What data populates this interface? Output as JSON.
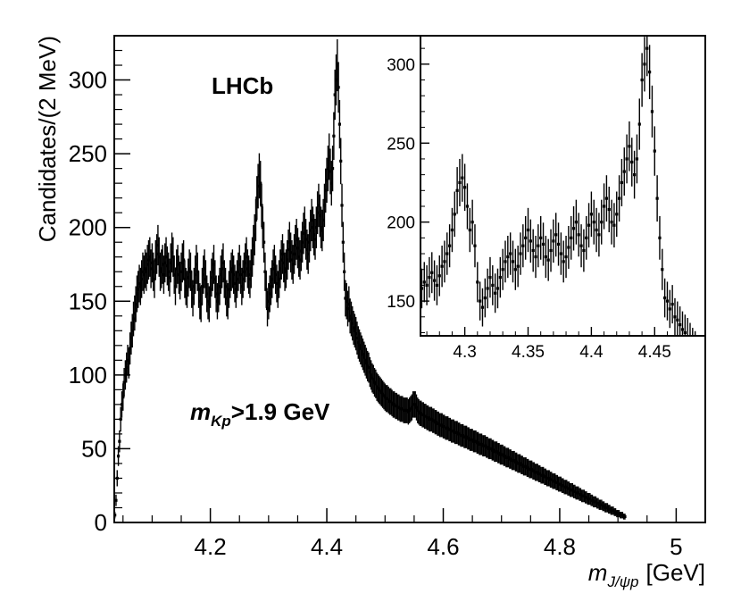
{
  "chart_data": [
    {
      "type": "scatter",
      "title": "",
      "annotations": {
        "experiment": "LHCb",
        "cut_var": "m",
        "cut_sub": "Kp",
        "cut_rest": ">1.9 GeV"
      },
      "xlabel_var": "m",
      "xlabel_sub": "J/ψp",
      "xlabel_unit": "[GeV]",
      "ylabel": "Candidates/(2 MeV)",
      "xlim": [
        4.035,
        5.05
      ],
      "ylim": [
        0,
        330
      ],
      "xticks": [
        4.2,
        4.4,
        4.6,
        4.8,
        5.0
      ],
      "xtick_labels": [
        "4.2",
        "4.4",
        "4.6",
        "4.8",
        "5"
      ],
      "yticks": [
        0,
        50,
        100,
        150,
        200,
        250,
        300
      ],
      "ytick_labels": [
        "0",
        "50",
        "100",
        "150",
        "200",
        "250",
        "300"
      ],
      "bin_width": 0.002,
      "x_first_center": 4.036,
      "values": [
        5,
        15,
        30,
        45,
        55,
        70,
        80,
        85,
        95,
        100,
        105,
        110,
        108,
        118,
        125,
        130,
        138,
        142,
        148,
        155,
        158,
        162,
        160,
        165,
        170,
        168,
        172,
        170,
        175,
        178,
        180,
        172,
        176,
        170,
        165,
        178,
        182,
        188,
        180,
        170,
        172,
        175,
        168,
        176,
        180,
        174,
        170,
        166,
        176,
        183,
        180,
        168,
        160,
        172,
        175,
        168,
        164,
        170,
        176,
        178,
        165,
        160,
        158,
        166,
        172,
        170,
        158,
        152,
        160,
        168,
        175,
        170,
        158,
        150,
        148,
        160,
        168,
        172,
        165,
        155,
        150,
        148,
        158,
        166,
        170,
        175,
        165,
        155,
        150,
        155,
        160,
        168,
        172,
        176,
        165,
        160,
        152,
        150,
        158,
        165,
        170,
        172,
        168,
        162,
        158,
        165,
        170,
        175,
        168,
        160,
        165,
        170,
        176,
        180,
        172,
        168,
        165,
        172,
        180,
        188,
        195,
        205,
        220,
        228,
        235,
        230,
        215,
        200,
        190,
        170,
        158,
        145,
        150,
        155,
        160,
        165,
        172,
        175,
        168,
        162,
        158,
        165,
        172,
        178,
        182,
        176,
        170,
        172,
        178,
        185,
        190,
        183,
        178,
        175,
        182,
        188,
        192,
        186,
        180,
        178,
        184,
        190,
        196,
        200,
        192,
        185,
        182,
        190,
        198,
        205,
        200,
        195,
        192,
        200,
        210,
        215,
        208,
        200,
        198,
        205,
        215,
        225,
        232,
        240,
        248,
        238,
        230,
        240,
        262,
        290,
        300,
        310,
        295,
        270,
        245,
        215,
        190,
        170,
        152,
        150,
        145,
        148,
        140,
        138,
        135,
        132,
        130,
        128,
        125,
        122,
        120,
        118,
        116,
        114,
        112,
        110,
        108,
        106,
        105,
        102,
        100,
        98,
        97,
        95,
        94,
        92,
        91,
        90,
        89,
        88,
        87,
        86,
        85,
        84,
        84,
        83,
        82,
        82,
        81,
        80,
        80,
        79,
        79,
        78,
        78,
        77,
        77,
        77,
        76,
        76,
        76,
        76,
        75,
        76,
        77,
        78,
        80,
        80,
        80,
        78,
        76,
        75,
        74,
        74,
        73,
        73,
        72,
        72,
        71,
        71,
        70,
        70,
        70,
        69,
        69,
        68,
        68,
        67,
        67,
        66,
        66,
        66,
        65,
        65,
        64,
        64,
        64,
        63,
        63,
        62,
        62,
        62,
        61,
        61,
        61,
        60,
        60,
        59,
        59,
        59,
        58,
        58,
        58,
        57,
        57,
        56,
        56,
        56,
        55,
        55,
        55,
        54,
        54,
        53,
        53,
        53,
        52,
        52,
        52,
        51,
        51,
        50,
        50,
        50,
        49,
        49,
        48,
        48,
        48,
        47,
        47,
        46,
        46,
        46,
        45,
        45,
        44,
        44,
        44,
        43,
        43,
        42,
        42,
        42,
        41,
        41,
        40,
        40,
        40,
        39,
        39,
        38,
        38,
        38,
        37,
        37,
        36,
        36,
        36,
        35,
        35,
        34,
        34,
        34,
        33,
        33,
        32,
        32,
        32,
        31,
        31,
        30,
        30,
        30,
        29,
        29,
        28,
        28,
        28,
        27,
        27,
        26,
        26,
        26,
        25,
        25,
        24,
        24,
        24,
        23,
        23,
        22,
        22,
        22,
        21,
        21,
        20,
        20,
        20,
        19,
        19,
        18,
        18,
        18,
        17,
        17,
        16,
        16,
        16,
        15,
        15,
        14,
        14,
        14,
        13,
        13,
        12,
        12,
        12,
        11,
        11,
        10,
        10,
        10,
        9,
        9,
        8,
        8,
        8,
        7,
        7,
        6,
        6,
        6,
        5,
        5,
        5,
        4,
        4
      ]
    },
    {
      "type": "scatter",
      "title": "inset",
      "xlim": [
        4.265,
        4.49
      ],
      "ylim": [
        128,
        318
      ],
      "xticks": [
        4.3,
        4.35,
        4.4,
        4.45
      ],
      "xtick_labels": [
        "4.3",
        "4.35",
        "4.4",
        "4.45"
      ],
      "yticks": [
        150,
        200,
        250,
        300
      ],
      "ytick_labels": [
        "150",
        "200",
        "250",
        "300"
      ],
      "bin_width": 0.002,
      "x_first_center": 4.266,
      "values": [
        158,
        162,
        160,
        165,
        168,
        163,
        160,
        166,
        172,
        175,
        180,
        185,
        195,
        205,
        220,
        225,
        228,
        222,
        210,
        195,
        200,
        185,
        162,
        150,
        146,
        152,
        158,
        165,
        160,
        155,
        158,
        165,
        170,
        175,
        178,
        180,
        175,
        170,
        172,
        180,
        185,
        190,
        195,
        188,
        182,
        178,
        185,
        190,
        186,
        178,
        176,
        182,
        188,
        192,
        186,
        180,
        175,
        178,
        184,
        190,
        196,
        200,
        192,
        185,
        182,
        190,
        198,
        205,
        200,
        195,
        192,
        200,
        210,
        215,
        208,
        200,
        198,
        205,
        215,
        225,
        232,
        240,
        248,
        238,
        230,
        240,
        262,
        290,
        300,
        310,
        295,
        270,
        245,
        215,
        190,
        170,
        152,
        150,
        145,
        148,
        140,
        138,
        135,
        132,
        130,
        128,
        125,
        122,
        120
      ]
    }
  ]
}
